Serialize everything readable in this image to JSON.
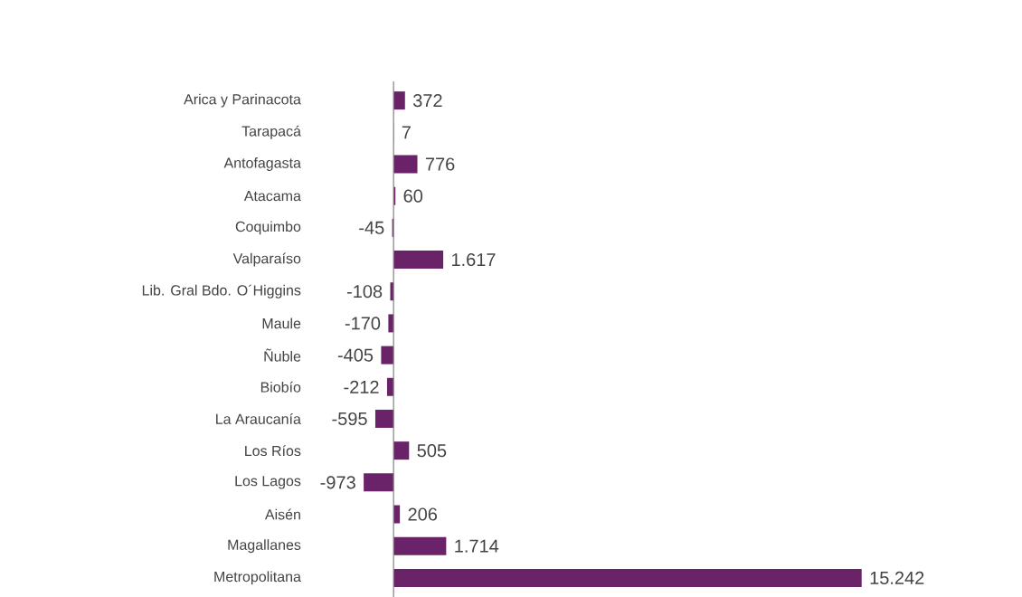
{
  "chart_data": {
    "type": "bar",
    "orientation": "horizontal",
    "color": "#6a2369",
    "categories": [
      "Arica y Parinacota",
      "Tarapacá",
      "Antofagasta",
      "Atacama",
      "Coquimbo",
      "Valparaíso",
      "Lib. Gral Bdo. O´Higgins",
      "Maule",
      "Ñuble",
      "Biobío",
      "La Araucanía",
      "Los Ríos",
      "Los Lagos",
      "Aisén",
      "Magallanes",
      "Metropolitana"
    ],
    "values": [
      372,
      7,
      776,
      60,
      -45,
      1617,
      -108,
      -170,
      -405,
      -212,
      -595,
      505,
      -973,
      206,
      1714,
      15242
    ],
    "value_labels": [
      "372",
      "7",
      "776",
      "60",
      "-45",
      "1.617",
      "-108",
      "-170",
      "-405",
      "-212",
      "-595",
      "505",
      "-973",
      "206",
      "1.714",
      "15.242"
    ]
  }
}
